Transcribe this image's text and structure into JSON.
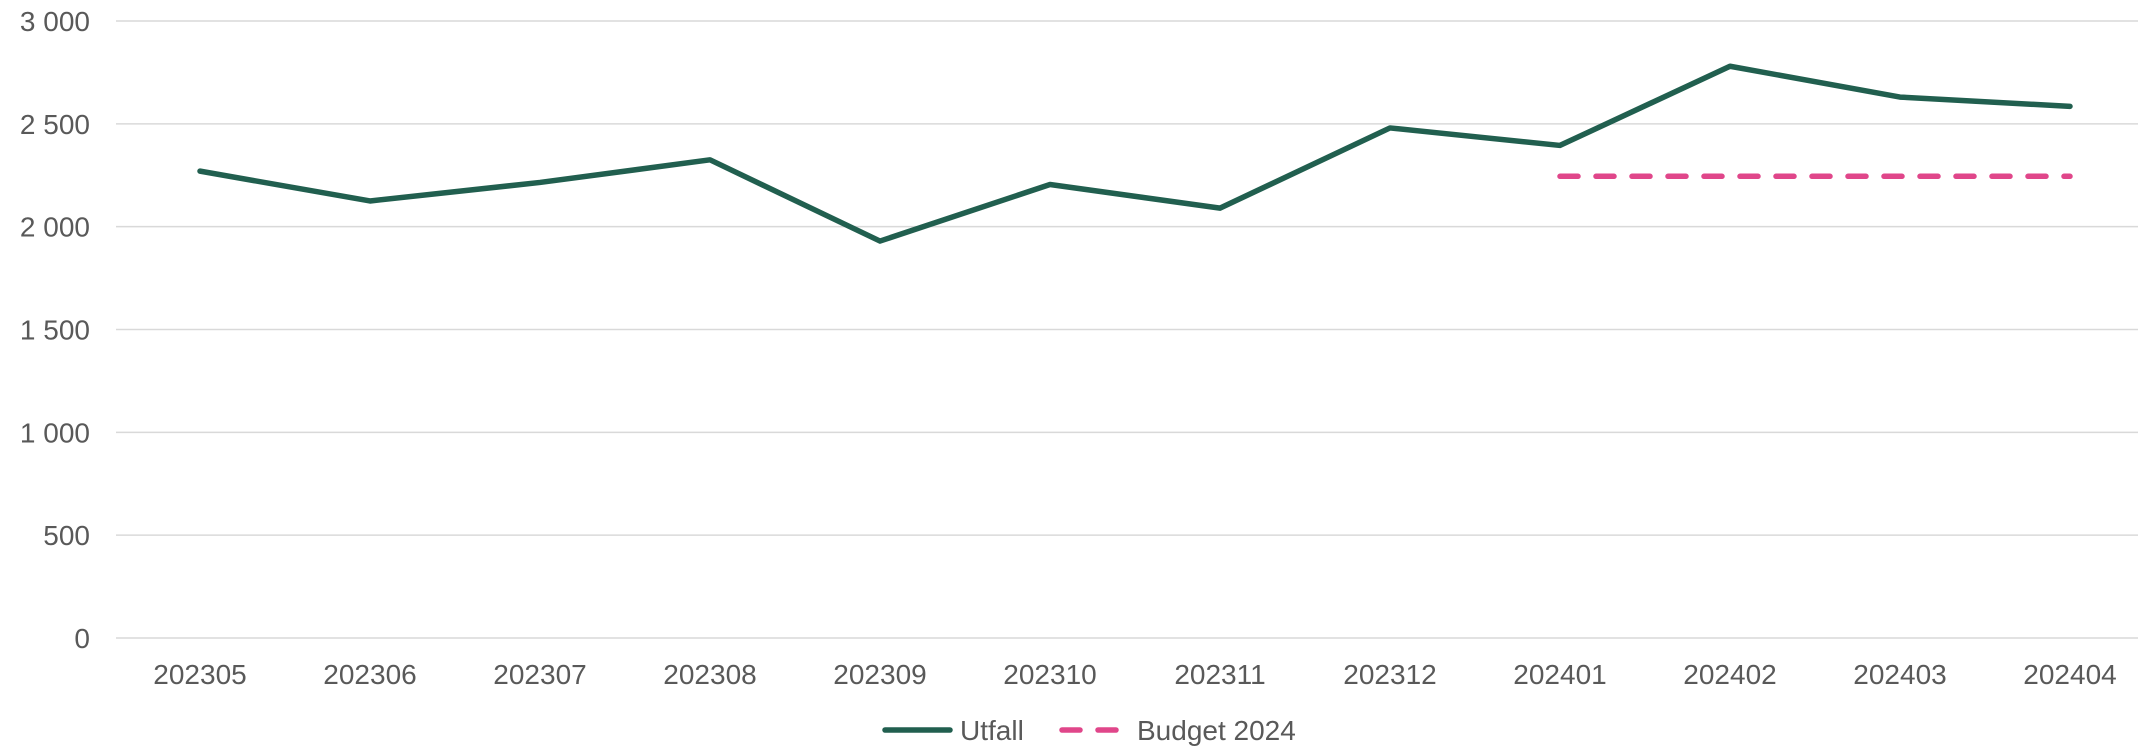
{
  "chart_data": {
    "type": "line",
    "categories": [
      "202305",
      "202306",
      "202307",
      "202308",
      "202309",
      "202310",
      "202311",
      "202312",
      "202401",
      "202402",
      "202403",
      "202404"
    ],
    "ylim": [
      0,
      3000
    ],
    "yticks": [
      0,
      500,
      1000,
      1500,
      2000,
      2500,
      3000
    ],
    "ytick_labels": [
      "0",
      "500",
      "1 000",
      "1 500",
      "2 000",
      "2 500",
      "3 000"
    ],
    "grid": true,
    "legend_position": "bottom",
    "series": [
      {
        "name": "Utfall",
        "color": "#215F4F",
        "style": "solid",
        "values": [
          2270,
          2125,
          2215,
          2325,
          1930,
          2205,
          2090,
          2480,
          2395,
          2780,
          2630,
          2585
        ]
      },
      {
        "name": "Budget 2024",
        "color": "#E0468A",
        "style": "dashed",
        "values": [
          null,
          null,
          null,
          null,
          null,
          null,
          null,
          null,
          2245,
          2245,
          2245,
          2245
        ]
      }
    ]
  }
}
